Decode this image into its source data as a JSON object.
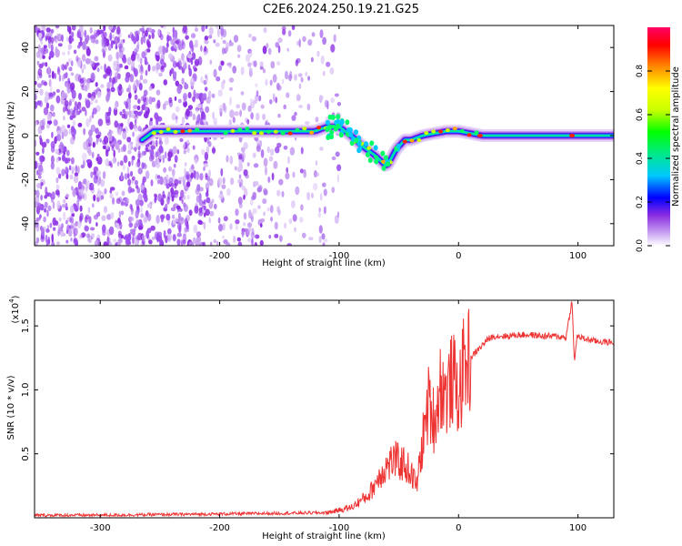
{
  "title": "C2E6.2024.250.19.21.G25",
  "chart_data": [
    {
      "type": "heatmap",
      "xlabel": "Height of straight line (km)",
      "ylabel": "Frequency (Hz)",
      "xlim": [
        -355,
        130
      ],
      "ylim": [
        -50,
        50
      ],
      "xticks": [
        -300,
        -200,
        -100,
        0,
        100
      ],
      "yticks": [
        -40,
        -20,
        0,
        20,
        40
      ],
      "grid": false,
      "colorbar": {
        "label": "Normalized spectral amplitude",
        "range": [
          0,
          1
        ],
        "ticks": [
          0.0,
          0.2,
          0.4,
          0.6,
          0.8
        ],
        "colormap": [
          "#ffffff",
          "#c8a0f0",
          "#8a2be2",
          "#0000ff",
          "#00c8ff",
          "#00e88a",
          "#00ff00",
          "#c8ff00",
          "#ffff00",
          "#ff8800",
          "#ff0000",
          "#ff0066"
        ]
      },
      "ridge": {
        "x": [
          -265,
          -255,
          -215,
          -200,
          -150,
          -120,
          -110,
          -100,
          -90,
          -80,
          -70,
          -60,
          -52,
          -45,
          -40,
          -30,
          -20,
          -10,
          0,
          10,
          20,
          40,
          60,
          80,
          100,
          130
        ],
        "y": [
          -2,
          2,
          2,
          2,
          2,
          2,
          4,
          4,
          0,
          -5,
          -9,
          -14,
          -6,
          -2,
          -2,
          0,
          1,
          2,
          2,
          1,
          0,
          0,
          0,
          0,
          0,
          0
        ]
      }
    },
    {
      "type": "line",
      "xlabel": "Height of straight line (km)",
      "ylabel": "SNR (10 * v/v)",
      "y_multiplier": "(x10^4)",
      "xlim": [
        -355,
        130
      ],
      "ylim": [
        0,
        17000
      ],
      "xticks": [
        -300,
        -200,
        -100,
        0,
        100
      ],
      "yticks": [
        0.5,
        1.0,
        1.5
      ],
      "color": "#ee3333",
      "series": [
        {
          "x": [
            -355,
            -300,
            -250,
            -200,
            -150,
            -110,
            -90,
            -75,
            -65,
            -55,
            -45,
            -40,
            -35,
            -30,
            -25,
            -20,
            -15,
            -10,
            -5,
            0,
            5,
            10,
            15,
            20,
            25,
            30,
            40,
            50,
            60,
            70,
            80,
            90,
            95,
            97,
            99,
            105,
            115,
            130
          ],
          "y": [
            200,
            200,
            250,
            300,
            350,
            400,
            800,
            1800,
            3500,
            4500,
            4200,
            3500,
            2500,
            6000,
            9000,
            7500,
            10500,
            9500,
            11000,
            9500,
            12000,
            12500,
            13000,
            13500,
            14000,
            14200,
            14200,
            14300,
            14300,
            14200,
            14200,
            14100,
            17000,
            12000,
            14200,
            14000,
            13800,
            13700
          ]
        }
      ]
    }
  ]
}
